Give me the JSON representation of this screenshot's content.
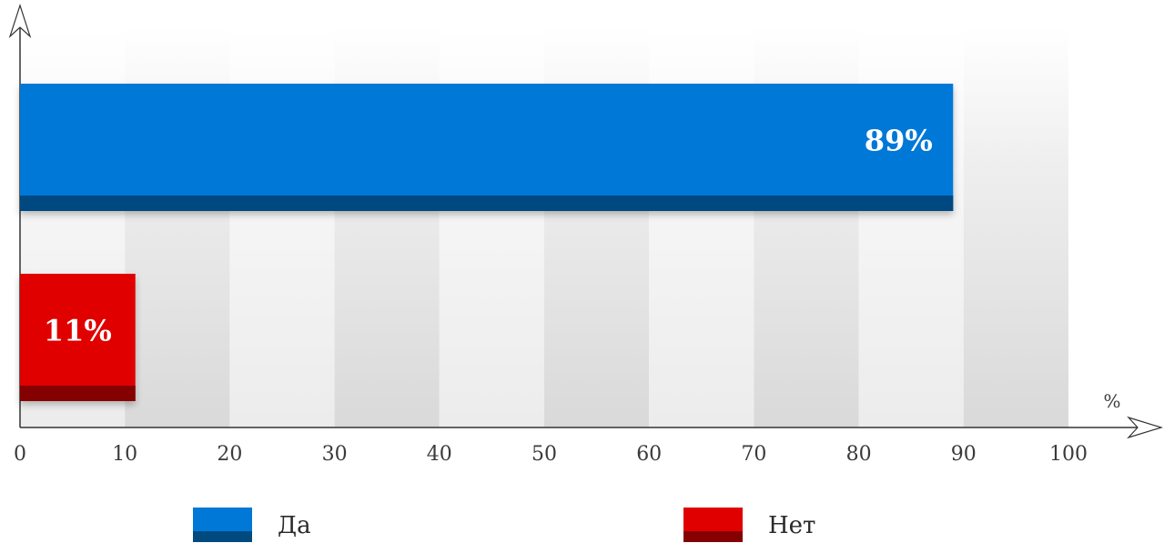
{
  "chart_data": {
    "type": "bar",
    "orientation": "horizontal",
    "x_unit_label": "%",
    "xlim": [
      0,
      100
    ],
    "x_ticks": [
      0,
      10,
      20,
      30,
      40,
      50,
      60,
      70,
      80,
      90,
      100
    ],
    "series": [
      {
        "name": "Да",
        "value": 89,
        "label": "89%",
        "color": "#0078d7",
        "shade_color": "#004a80"
      },
      {
        "name": "Нет",
        "value": 11,
        "label": "11%",
        "color": "#e00000",
        "shade_color": "#850000"
      }
    ],
    "legend_position": "bottom",
    "grid": "alternating vertical bands"
  }
}
